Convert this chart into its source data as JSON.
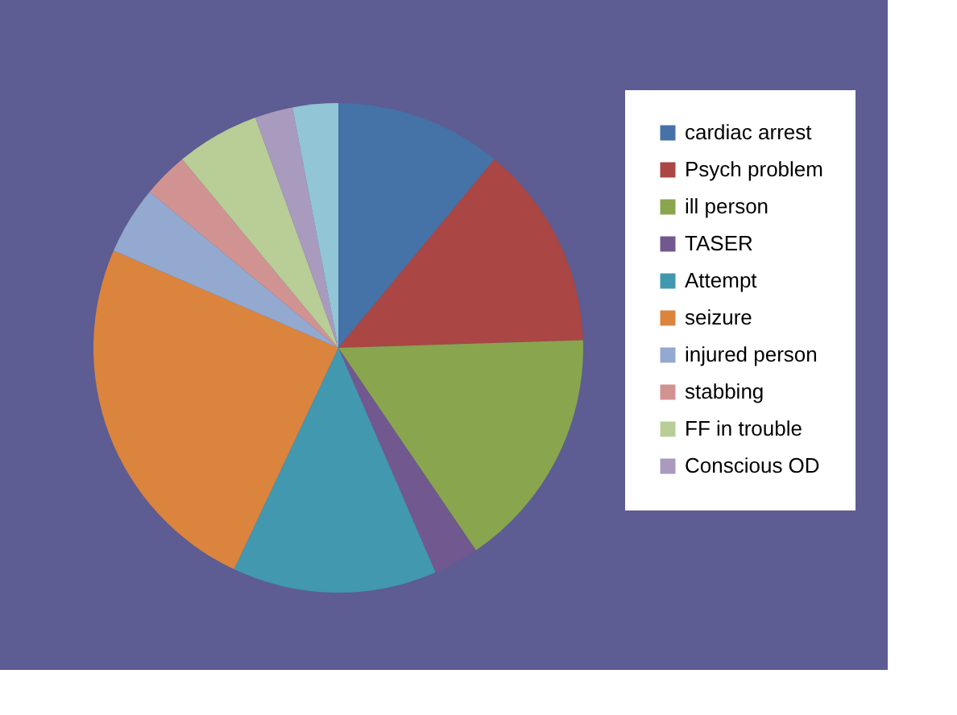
{
  "chart_data": {
    "type": "pie",
    "categories": [
      "cardiac arrest",
      "Psych problem",
      "ill person",
      "TASER",
      "Attempt",
      "seizure",
      "injured person",
      "stabbing",
      "FF in trouble",
      "Conscious OD",
      null
    ],
    "values": [
      11,
      13.5,
      16,
      3,
      13.5,
      24.5,
      4.5,
      3,
      5.5,
      2.5,
      3
    ],
    "colors": [
      "#4572a7",
      "#aa4643",
      "#89a54e",
      "#71588f",
      "#4198af",
      "#db843d",
      "#93a9cf",
      "#d19392",
      "#b9cd96",
      "#a99bbd",
      "#92c5d6"
    ],
    "legend": "right"
  }
}
